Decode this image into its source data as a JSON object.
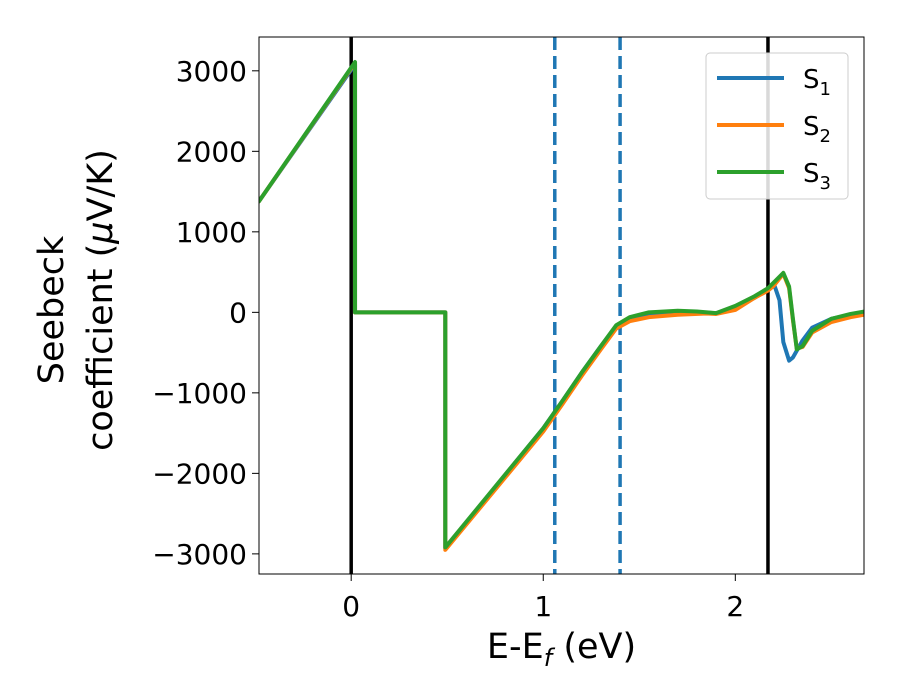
{
  "chart_data": {
    "type": "line",
    "title": "",
    "xlabel": {
      "main": "E-E",
      "sub": "f",
      "suffix": " (eV)"
    },
    "ylabel": {
      "line1": "Seebeck",
      "line2_pre": "coefficient  (",
      "mu": "μ",
      "line2_post": "V/K)"
    },
    "xlim": [
      -0.48,
      2.67
    ],
    "ylim": [
      -3250,
      3420
    ],
    "x_ticks": [
      0,
      1,
      2
    ],
    "x_tick_labels": [
      "0",
      "1",
      "2"
    ],
    "y_ticks": [
      3000,
      2000,
      1000,
      0,
      -1000,
      -2000,
      -3000
    ],
    "y_tick_labels": [
      "3000",
      "2000",
      "1000",
      "0",
      "−1000",
      "−2000",
      "−3000"
    ],
    "legend_position": "top-right",
    "vlines": [
      {
        "x": 0.0,
        "style": "solid",
        "color": "#000000"
      },
      {
        "x": 1.06,
        "style": "dashed",
        "color": "#1f77b4"
      },
      {
        "x": 1.4,
        "style": "dashed",
        "color": "#1f77b4"
      },
      {
        "x": 2.17,
        "style": "solid",
        "color": "#000000"
      }
    ],
    "series": [
      {
        "name": "S",
        "sub": "1",
        "color": "#1f77b4",
        "points": [
          [
            -0.48,
            1380
          ],
          [
            0.02,
            3080
          ],
          [
            0.02,
            0
          ],
          [
            0.49,
            0
          ],
          [
            0.49,
            -2930
          ],
          [
            1.0,
            -1440
          ],
          [
            1.1,
            -1100
          ],
          [
            1.2,
            -750
          ],
          [
            1.3,
            -420
          ],
          [
            1.38,
            -170
          ],
          [
            1.45,
            -80
          ],
          [
            1.55,
            -30
          ],
          [
            1.7,
            -10
          ],
          [
            1.85,
            -5
          ],
          [
            1.9,
            -10
          ],
          [
            2.0,
            60
          ],
          [
            2.1,
            180
          ],
          [
            2.17,
            290
          ],
          [
            2.2,
            360
          ],
          [
            2.23,
            150
          ],
          [
            2.25,
            -370
          ],
          [
            2.28,
            -600
          ],
          [
            2.3,
            -560
          ],
          [
            2.35,
            -350
          ],
          [
            2.4,
            -190
          ],
          [
            2.5,
            -80
          ],
          [
            2.6,
            -30
          ],
          [
            2.67,
            0
          ]
        ]
      },
      {
        "name": "S",
        "sub": "2",
        "color": "#ff7f0e",
        "points": [
          [
            -0.48,
            1380
          ],
          [
            0.02,
            3100
          ],
          [
            0.02,
            0
          ],
          [
            0.49,
            0
          ],
          [
            0.49,
            -2950
          ],
          [
            1.0,
            -1480
          ],
          [
            1.1,
            -1140
          ],
          [
            1.2,
            -790
          ],
          [
            1.3,
            -460
          ],
          [
            1.38,
            -200
          ],
          [
            1.45,
            -110
          ],
          [
            1.55,
            -60
          ],
          [
            1.7,
            -30
          ],
          [
            1.85,
            -15
          ],
          [
            1.9,
            -20
          ],
          [
            2.0,
            30
          ],
          [
            2.1,
            180
          ],
          [
            2.17,
            270
          ],
          [
            2.2,
            330
          ],
          [
            2.25,
            480
          ],
          [
            2.28,
            300
          ],
          [
            2.3,
            -100
          ],
          [
            2.32,
            -450
          ],
          [
            2.35,
            -430
          ],
          [
            2.4,
            -250
          ],
          [
            2.5,
            -120
          ],
          [
            2.6,
            -60
          ],
          [
            2.67,
            -30
          ]
        ]
      },
      {
        "name": "S",
        "sub": "3",
        "color": "#2ca02c",
        "points": [
          [
            -0.48,
            1380
          ],
          [
            0.02,
            3110
          ],
          [
            0.02,
            0
          ],
          [
            0.49,
            0
          ],
          [
            0.49,
            -2920
          ],
          [
            1.0,
            -1440
          ],
          [
            1.1,
            -1100
          ],
          [
            1.2,
            -750
          ],
          [
            1.3,
            -420
          ],
          [
            1.38,
            -160
          ],
          [
            1.45,
            -60
          ],
          [
            1.55,
            0
          ],
          [
            1.7,
            20
          ],
          [
            1.8,
            10
          ],
          [
            1.9,
            -10
          ],
          [
            2.0,
            80
          ],
          [
            2.1,
            200
          ],
          [
            2.17,
            300
          ],
          [
            2.2,
            370
          ],
          [
            2.25,
            490
          ],
          [
            2.28,
            320
          ],
          [
            2.3,
            -80
          ],
          [
            2.32,
            -460
          ],
          [
            2.35,
            -420
          ],
          [
            2.4,
            -230
          ],
          [
            2.5,
            -80
          ],
          [
            2.6,
            -20
          ],
          [
            2.67,
            10
          ]
        ]
      }
    ]
  }
}
